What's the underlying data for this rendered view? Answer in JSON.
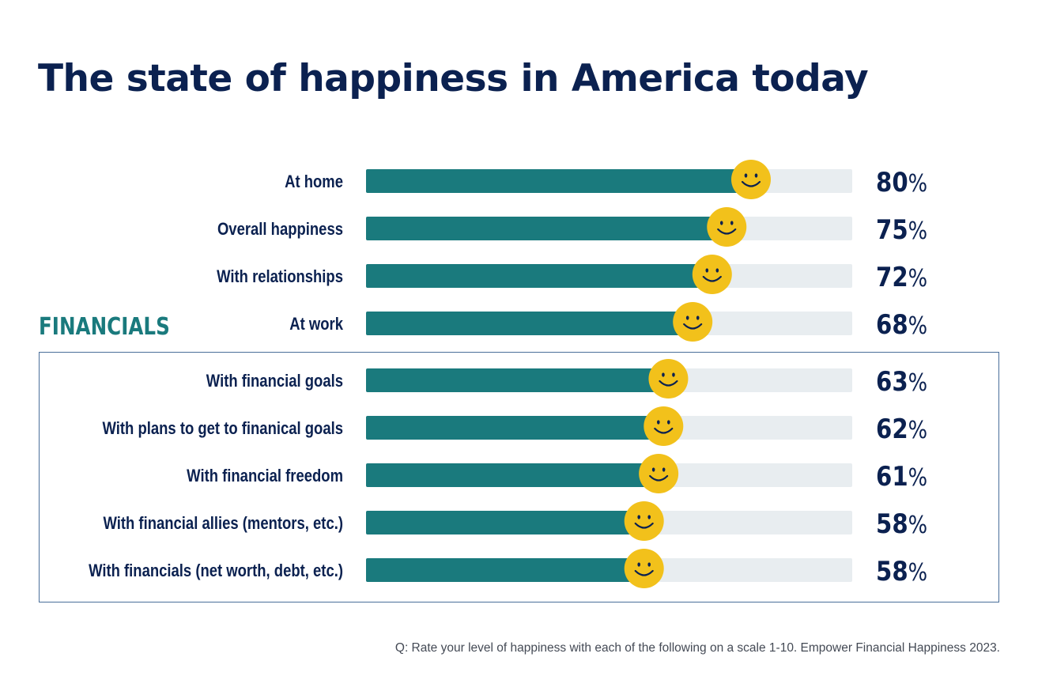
{
  "title": "The state of happiness in America today",
  "financials_label": "FINANCIALS",
  "footnote": "Q: Rate your level of happiness with each of the following on a scale 1-10. Empower Financial Happiness 2023.",
  "colors": {
    "title": "#0b2150",
    "label": "#0b2150",
    "bar_fill": "#1a7a7d",
    "bar_track": "#e8edf0",
    "smiley": "#f2c11b",
    "smiley_face": "#0b2150",
    "financials_accent": "#1a7a7d",
    "box_border": "#4a6e9a"
  },
  "chart_data": {
    "type": "bar",
    "orientation": "horizontal",
    "value_suffix": "%",
    "xlim": [
      0,
      100
    ],
    "marker_icon": "smiley-face-icon",
    "categories": [
      "At home",
      "Overall happiness",
      "With relationships",
      "At work",
      "With financial goals",
      "With plans to get to finanical goals",
      "With financial freedom",
      "With financial allies (mentors, etc.)",
      "With financials (net worth, debt, etc.)"
    ],
    "values": [
      80,
      75,
      72,
      68,
      63,
      62,
      61,
      58,
      58
    ],
    "groups": [
      {
        "name": "",
        "range": [
          0,
          3
        ]
      },
      {
        "name": "FINANCIALS",
        "range": [
          4,
          8
        ]
      }
    ]
  }
}
